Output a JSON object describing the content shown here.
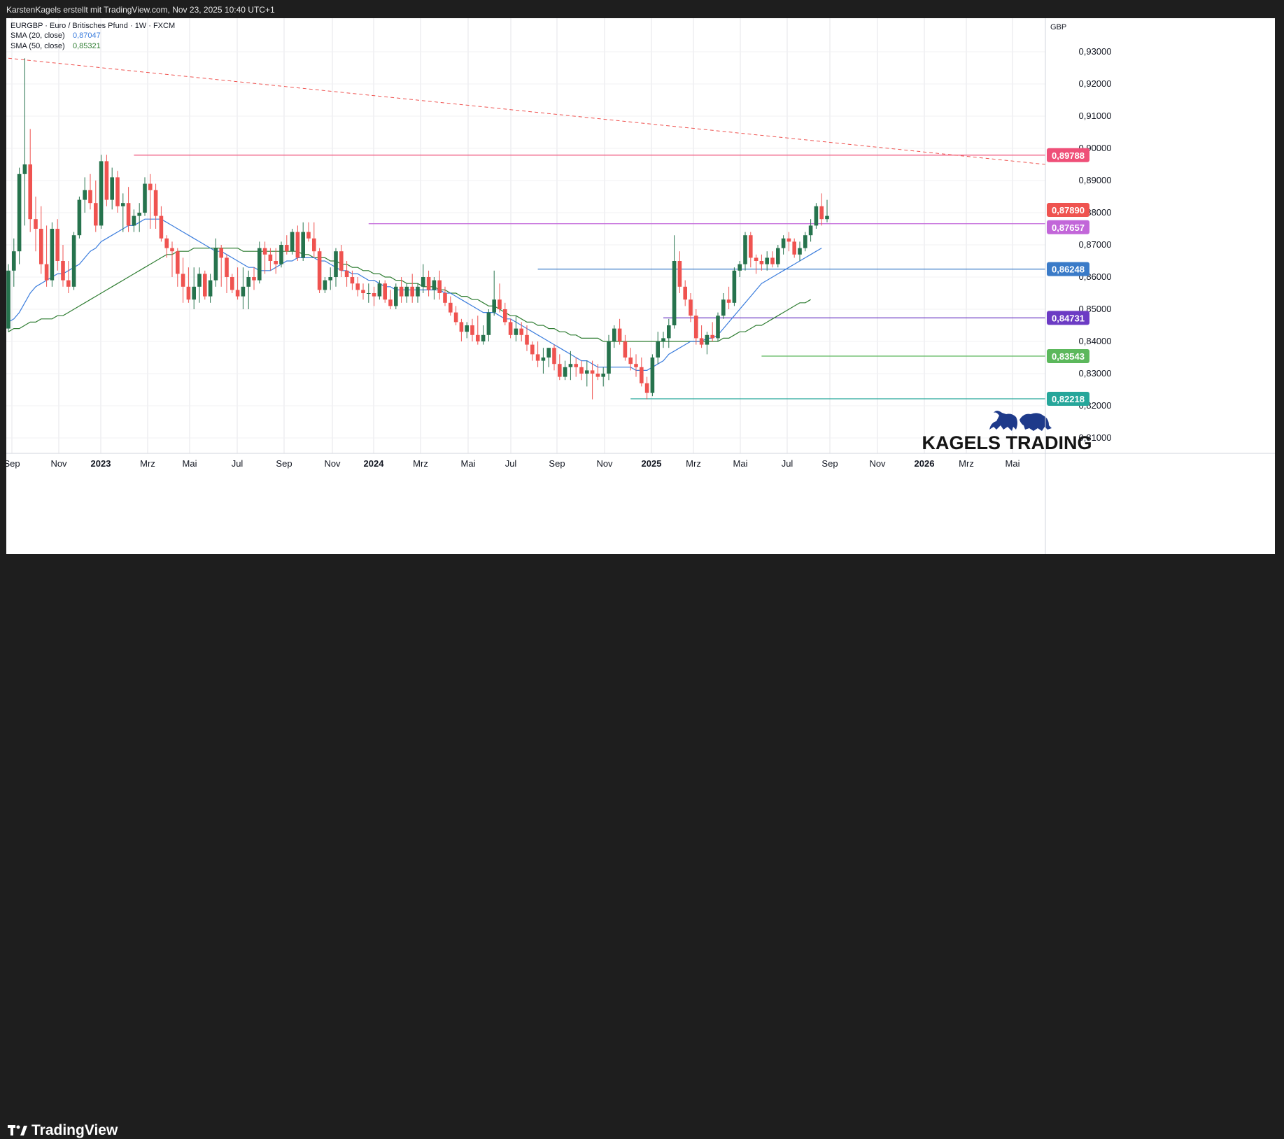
{
  "header": {
    "credit": "KarstenKagels erstellt mit TradingView.com, Nov 23, 2025 10:40 UTC+1"
  },
  "legend": {
    "symbol": "EURGBP · Euro / Britisches Pfund · 1W · FXCM",
    "sma20_label": "SMA (20, close)",
    "sma20_value": "0,87047",
    "sma50_label": "SMA (50, close)",
    "sma50_value": "0,85321"
  },
  "price_axis": {
    "currency": "GBP",
    "ticks": [
      "0,93000",
      "0,92000",
      "0,91000",
      "0,90000",
      "0,89000",
      "0,88000",
      "0,87000",
      "0,86000",
      "0,85000",
      "0,84000",
      "0,83000",
      "0,82000",
      "0,81000"
    ]
  },
  "time_axis": {
    "labels": [
      "Sep",
      "Nov",
      "2023",
      "Mrz",
      "Mai",
      "Jul",
      "Sep",
      "Nov",
      "2024",
      "Mrz",
      "Mai",
      "Jul",
      "Sep",
      "Nov",
      "2025",
      "Mrz",
      "Mai",
      "Jul",
      "Sep",
      "Nov",
      "2026",
      "Mrz",
      "Mai"
    ]
  },
  "brand": {
    "watermark": "KAGELS TRADING",
    "footer_logo": "TradingView"
  },
  "colors": {
    "up": "#26734d",
    "down": "#ef5350",
    "sma20": "#3b7ddd",
    "sma50": "#2f7d32",
    "trendline": "#ef5350",
    "resistance": "#ef4f78",
    "level_87657": "#c266d9",
    "level_86248": "#3a7bc8",
    "level_84731": "#6c3bc4",
    "level_83543": "#5cb85c",
    "level_82218": "#26a69a",
    "watermark": "#1e3a8a"
  },
  "chart_data": {
    "type": "candlestick",
    "timeframe": "1W",
    "title": "EURGBP · Euro / Britisches Pfund · 1W · FXCM",
    "ylim": [
      0.805,
      0.935
    ],
    "y_unit": "GBP",
    "candles_ohlc": [
      [
        0.844,
        0.864,
        0.843,
        0.862
      ],
      [
        0.862,
        0.872,
        0.857,
        0.868
      ],
      [
        0.868,
        0.894,
        0.864,
        0.892
      ],
      [
        0.892,
        0.928,
        0.876,
        0.895
      ],
      [
        0.895,
        0.906,
        0.874,
        0.878
      ],
      [
        0.878,
        0.885,
        0.868,
        0.875
      ],
      [
        0.875,
        0.882,
        0.861,
        0.864
      ],
      [
        0.864,
        0.876,
        0.857,
        0.859
      ],
      [
        0.859,
        0.877,
        0.857,
        0.875
      ],
      [
        0.875,
        0.878,
        0.862,
        0.865
      ],
      [
        0.865,
        0.87,
        0.857,
        0.859
      ],
      [
        0.859,
        0.865,
        0.855,
        0.857
      ],
      [
        0.857,
        0.874,
        0.856,
        0.873
      ],
      [
        0.873,
        0.885,
        0.872,
        0.884
      ],
      [
        0.884,
        0.891,
        0.88,
        0.887
      ],
      [
        0.887,
        0.892,
        0.881,
        0.883
      ],
      [
        0.883,
        0.89,
        0.874,
        0.876
      ],
      [
        0.876,
        0.898,
        0.875,
        0.896
      ],
      [
        0.896,
        0.898,
        0.882,
        0.884
      ],
      [
        0.884,
        0.894,
        0.881,
        0.891
      ],
      [
        0.891,
        0.893,
        0.88,
        0.882
      ],
      [
        0.882,
        0.886,
        0.874,
        0.883
      ],
      [
        0.883,
        0.888,
        0.874,
        0.876
      ],
      [
        0.876,
        0.881,
        0.874,
        0.879
      ],
      [
        0.879,
        0.883,
        0.874,
        0.88
      ],
      [
        0.88,
        0.891,
        0.879,
        0.889
      ],
      [
        0.889,
        0.892,
        0.875,
        0.887
      ],
      [
        0.887,
        0.889,
        0.875,
        0.879
      ],
      [
        0.879,
        0.882,
        0.871,
        0.872
      ],
      [
        0.872,
        0.873,
        0.866,
        0.869
      ],
      [
        0.869,
        0.871,
        0.86,
        0.868
      ],
      [
        0.868,
        0.869,
        0.857,
        0.861
      ],
      [
        0.861,
        0.866,
        0.852,
        0.857
      ],
      [
        0.857,
        0.863,
        0.852,
        0.853
      ],
      [
        0.853,
        0.863,
        0.85,
        0.857
      ],
      [
        0.857,
        0.863,
        0.852,
        0.861
      ],
      [
        0.861,
        0.862,
        0.853,
        0.854
      ],
      [
        0.854,
        0.861,
        0.852,
        0.859
      ],
      [
        0.859,
        0.872,
        0.857,
        0.869
      ],
      [
        0.869,
        0.87,
        0.857,
        0.866
      ],
      [
        0.866,
        0.867,
        0.855,
        0.86
      ],
      [
        0.86,
        0.861,
        0.855,
        0.856
      ],
      [
        0.856,
        0.863,
        0.853,
        0.854
      ],
      [
        0.854,
        0.863,
        0.85,
        0.857
      ],
      [
        0.857,
        0.862,
        0.85,
        0.86
      ],
      [
        0.86,
        0.863,
        0.856,
        0.859
      ],
      [
        0.859,
        0.871,
        0.858,
        0.869
      ],
      [
        0.869,
        0.871,
        0.861,
        0.867
      ],
      [
        0.867,
        0.869,
        0.862,
        0.865
      ],
      [
        0.865,
        0.869,
        0.861,
        0.864
      ],
      [
        0.864,
        0.871,
        0.863,
        0.87
      ],
      [
        0.87,
        0.873,
        0.867,
        0.868
      ],
      [
        0.868,
        0.875,
        0.867,
        0.874
      ],
      [
        0.874,
        0.876,
        0.865,
        0.866
      ],
      [
        0.866,
        0.877,
        0.865,
        0.874
      ],
      [
        0.874,
        0.877,
        0.871,
        0.872
      ],
      [
        0.872,
        0.877,
        0.866,
        0.868
      ],
      [
        0.868,
        0.869,
        0.855,
        0.856
      ],
      [
        0.856,
        0.86,
        0.855,
        0.859
      ],
      [
        0.859,
        0.863,
        0.856,
        0.86
      ],
      [
        0.86,
        0.869,
        0.857,
        0.868
      ],
      [
        0.868,
        0.87,
        0.86,
        0.862
      ],
      [
        0.862,
        0.865,
        0.857,
        0.86
      ],
      [
        0.86,
        0.862,
        0.856,
        0.858
      ],
      [
        0.858,
        0.86,
        0.854,
        0.856
      ],
      [
        0.856,
        0.858,
        0.853,
        0.855
      ],
      [
        0.855,
        0.858,
        0.852,
        0.855
      ],
      [
        0.855,
        0.857,
        0.851,
        0.854
      ],
      [
        0.854,
        0.859,
        0.853,
        0.858
      ],
      [
        0.858,
        0.859,
        0.852,
        0.853
      ],
      [
        0.853,
        0.856,
        0.85,
        0.851
      ],
      [
        0.851,
        0.858,
        0.85,
        0.857
      ],
      [
        0.857,
        0.86,
        0.852,
        0.854
      ],
      [
        0.854,
        0.858,
        0.852,
        0.857
      ],
      [
        0.857,
        0.861,
        0.852,
        0.854
      ],
      [
        0.854,
        0.858,
        0.852,
        0.857
      ],
      [
        0.857,
        0.864,
        0.855,
        0.86
      ],
      [
        0.86,
        0.862,
        0.854,
        0.856
      ],
      [
        0.856,
        0.86,
        0.853,
        0.859
      ],
      [
        0.859,
        0.862,
        0.853,
        0.855
      ],
      [
        0.855,
        0.857,
        0.851,
        0.852
      ],
      [
        0.852,
        0.854,
        0.848,
        0.849
      ],
      [
        0.849,
        0.851,
        0.845,
        0.846
      ],
      [
        0.846,
        0.847,
        0.84,
        0.843
      ],
      [
        0.843,
        0.846,
        0.841,
        0.845
      ],
      [
        0.845,
        0.847,
        0.84,
        0.842
      ],
      [
        0.842,
        0.848,
        0.839,
        0.84
      ],
      [
        0.84,
        0.845,
        0.839,
        0.842
      ],
      [
        0.842,
        0.85,
        0.84,
        0.849
      ],
      [
        0.849,
        0.862,
        0.848,
        0.853
      ],
      [
        0.853,
        0.858,
        0.849,
        0.85
      ],
      [
        0.85,
        0.852,
        0.845,
        0.846
      ],
      [
        0.846,
        0.847,
        0.841,
        0.842
      ],
      [
        0.842,
        0.848,
        0.84,
        0.844
      ],
      [
        0.844,
        0.846,
        0.84,
        0.842
      ],
      [
        0.842,
        0.845,
        0.837,
        0.839
      ],
      [
        0.839,
        0.84,
        0.834,
        0.836
      ],
      [
        0.836,
        0.84,
        0.832,
        0.834
      ],
      [
        0.834,
        0.838,
        0.83,
        0.835
      ],
      [
        0.835,
        0.838,
        0.832,
        0.838
      ],
      [
        0.838,
        0.839,
        0.831,
        0.833
      ],
      [
        0.833,
        0.836,
        0.828,
        0.829
      ],
      [
        0.829,
        0.834,
        0.828,
        0.832
      ],
      [
        0.832,
        0.837,
        0.828,
        0.833
      ],
      [
        0.833,
        0.835,
        0.829,
        0.832
      ],
      [
        0.832,
        0.834,
        0.828,
        0.83
      ],
      [
        0.83,
        0.834,
        0.826,
        0.831
      ],
      [
        0.831,
        0.834,
        0.822,
        0.83
      ],
      [
        0.83,
        0.833,
        0.828,
        0.829
      ],
      [
        0.829,
        0.832,
        0.826,
        0.83
      ],
      [
        0.83,
        0.842,
        0.828,
        0.84
      ],
      [
        0.84,
        0.845,
        0.838,
        0.844
      ],
      [
        0.844,
        0.847,
        0.839,
        0.84
      ],
      [
        0.84,
        0.842,
        0.834,
        0.835
      ],
      [
        0.835,
        0.838,
        0.831,
        0.833
      ],
      [
        0.833,
        0.836,
        0.829,
        0.832
      ],
      [
        0.832,
        0.835,
        0.826,
        0.827
      ],
      [
        0.827,
        0.829,
        0.822,
        0.824
      ],
      [
        0.824,
        0.836,
        0.823,
        0.835
      ],
      [
        0.835,
        0.843,
        0.833,
        0.84
      ],
      [
        0.84,
        0.843,
        0.838,
        0.841
      ],
      [
        0.841,
        0.847,
        0.838,
        0.845
      ],
      [
        0.845,
        0.873,
        0.844,
        0.865
      ],
      [
        0.865,
        0.868,
        0.855,
        0.857
      ],
      [
        0.857,
        0.859,
        0.851,
        0.853
      ],
      [
        0.853,
        0.855,
        0.846,
        0.848
      ],
      [
        0.848,
        0.85,
        0.839,
        0.841
      ],
      [
        0.841,
        0.845,
        0.838,
        0.839
      ],
      [
        0.839,
        0.843,
        0.836,
        0.842
      ],
      [
        0.842,
        0.846,
        0.84,
        0.841
      ],
      [
        0.841,
        0.849,
        0.84,
        0.848
      ],
      [
        0.848,
        0.855,
        0.847,
        0.853
      ],
      [
        0.853,
        0.857,
        0.85,
        0.852
      ],
      [
        0.852,
        0.863,
        0.851,
        0.862
      ],
      [
        0.862,
        0.865,
        0.86,
        0.864
      ],
      [
        0.864,
        0.874,
        0.862,
        0.873
      ],
      [
        0.873,
        0.874,
        0.863,
        0.866
      ],
      [
        0.866,
        0.867,
        0.861,
        0.865
      ],
      [
        0.865,
        0.867,
        0.862,
        0.864
      ],
      [
        0.864,
        0.868,
        0.862,
        0.866
      ],
      [
        0.866,
        0.868,
        0.863,
        0.864
      ],
      [
        0.864,
        0.87,
        0.863,
        0.869
      ],
      [
        0.869,
        0.873,
        0.867,
        0.872
      ],
      [
        0.872,
        0.874,
        0.868,
        0.871
      ],
      [
        0.871,
        0.872,
        0.866,
        0.867
      ],
      [
        0.867,
        0.871,
        0.865,
        0.869
      ],
      [
        0.869,
        0.874,
        0.868,
        0.873
      ],
      [
        0.873,
        0.878,
        0.871,
        0.876
      ],
      [
        0.876,
        0.883,
        0.875,
        0.882
      ],
      [
        0.882,
        0.886,
        0.876,
        0.878
      ],
      [
        0.878,
        0.884,
        0.877,
        0.879
      ]
    ],
    "sma20": [
      0.846,
      0.847,
      0.849,
      0.852,
      0.855,
      0.857,
      0.858,
      0.859,
      0.86,
      0.861,
      0.861,
      0.862,
      0.863,
      0.864,
      0.866,
      0.868,
      0.869,
      0.871,
      0.872,
      0.873,
      0.874,
      0.875,
      0.876,
      0.876,
      0.877,
      0.878,
      0.878,
      0.878,
      0.878,
      0.877,
      0.876,
      0.875,
      0.874,
      0.873,
      0.872,
      0.871,
      0.87,
      0.869,
      0.868,
      0.868,
      0.867,
      0.866,
      0.865,
      0.864,
      0.863,
      0.863,
      0.862,
      0.862,
      0.862,
      0.863,
      0.864,
      0.865,
      0.865,
      0.866,
      0.866,
      0.866,
      0.866,
      0.865,
      0.865,
      0.864,
      0.863,
      0.862,
      0.862,
      0.861,
      0.861,
      0.86,
      0.859,
      0.859,
      0.858,
      0.857,
      0.857,
      0.856,
      0.856,
      0.856,
      0.856,
      0.856,
      0.856,
      0.856,
      0.856,
      0.856,
      0.855,
      0.855,
      0.854,
      0.853,
      0.852,
      0.851,
      0.85,
      0.849,
      0.849,
      0.849,
      0.848,
      0.847,
      0.847,
      0.846,
      0.845,
      0.844,
      0.843,
      0.842,
      0.841,
      0.84,
      0.839,
      0.838,
      0.837,
      0.836,
      0.835,
      0.834,
      0.834,
      0.833,
      0.832,
      0.832,
      0.832,
      0.832,
      0.832,
      0.832,
      0.832,
      0.831,
      0.831,
      0.831,
      0.832,
      0.833,
      0.834,
      0.836,
      0.837,
      0.838,
      0.839,
      0.84,
      0.84,
      0.84,
      0.841,
      0.841,
      0.842,
      0.844,
      0.846,
      0.848,
      0.85,
      0.852,
      0.854,
      0.856,
      0.858,
      0.859,
      0.86,
      0.861,
      0.862,
      0.863,
      0.864,
      0.865,
      0.866,
      0.867,
      0.868,
      0.869
    ],
    "sma50": [
      0.843,
      0.844,
      0.844,
      0.845,
      0.846,
      0.846,
      0.847,
      0.847,
      0.847,
      0.848,
      0.848,
      0.849,
      0.85,
      0.851,
      0.852,
      0.853,
      0.854,
      0.855,
      0.856,
      0.857,
      0.858,
      0.859,
      0.86,
      0.861,
      0.862,
      0.863,
      0.864,
      0.865,
      0.866,
      0.867,
      0.867,
      0.868,
      0.868,
      0.868,
      0.869,
      0.869,
      0.869,
      0.869,
      0.869,
      0.869,
      0.869,
      0.869,
      0.869,
      0.868,
      0.868,
      0.868,
      0.868,
      0.868,
      0.868,
      0.868,
      0.868,
      0.868,
      0.868,
      0.868,
      0.867,
      0.867,
      0.866,
      0.866,
      0.866,
      0.865,
      0.865,
      0.864,
      0.864,
      0.863,
      0.863,
      0.862,
      0.862,
      0.861,
      0.861,
      0.86,
      0.86,
      0.859,
      0.859,
      0.858,
      0.858,
      0.858,
      0.857,
      0.857,
      0.857,
      0.856,
      0.856,
      0.855,
      0.855,
      0.854,
      0.854,
      0.853,
      0.853,
      0.852,
      0.851,
      0.851,
      0.85,
      0.849,
      0.848,
      0.848,
      0.847,
      0.846,
      0.846,
      0.845,
      0.845,
      0.844,
      0.844,
      0.843,
      0.843,
      0.842,
      0.842,
      0.841,
      0.841,
      0.841,
      0.841,
      0.84,
      0.84,
      0.84,
      0.84,
      0.84,
      0.84,
      0.84,
      0.84,
      0.84,
      0.84,
      0.84,
      0.84,
      0.84,
      0.84,
      0.84,
      0.84,
      0.84,
      0.84,
      0.84,
      0.84,
      0.84,
      0.84,
      0.841,
      0.841,
      0.842,
      0.843,
      0.843,
      0.844,
      0.845,
      0.845,
      0.846,
      0.847,
      0.848,
      0.849,
      0.85,
      0.851,
      0.852,
      0.852,
      0.853
    ],
    "trendline": {
      "style": "dashed",
      "from": {
        "date": "2022-09",
        "price": 0.928
      },
      "to": {
        "date": "2026-06",
        "price": 0.895
      }
    },
    "horizontal_levels": [
      {
        "price": 0.89788,
        "label": "0,89788",
        "color": "#ef4f78"
      },
      {
        "price": 0.87657,
        "label": "0,87657",
        "color": "#c266d9"
      },
      {
        "price": 0.86248,
        "label": "0,86248",
        "color": "#3a7bc8"
      },
      {
        "price": 0.84731,
        "label": "0,84731",
        "color": "#6c3bc4"
      },
      {
        "price": 0.83543,
        "label": "0,83543",
        "color": "#5cb85c"
      },
      {
        "price": 0.82218,
        "label": "0,82218",
        "color": "#26a69a"
      }
    ],
    "last_price": {
      "price": 0.8789,
      "label": "0,87890",
      "color": "#ef5350"
    }
  }
}
